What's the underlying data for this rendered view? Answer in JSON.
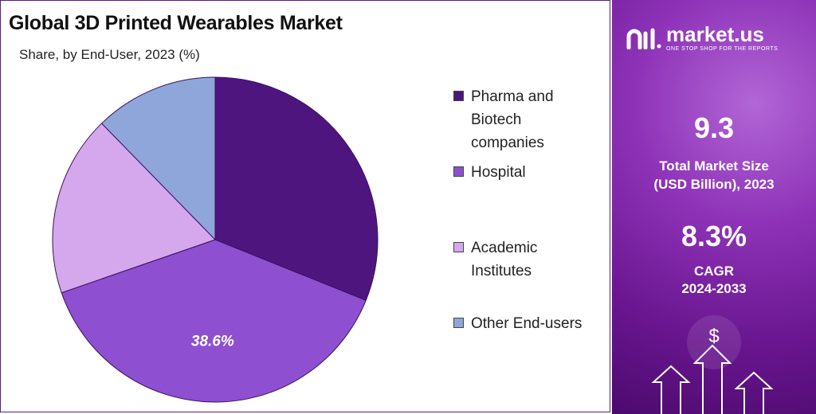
{
  "header": {
    "title": "Global 3D Printed Wearables Market",
    "subtitle": "Share, by End-User, 2023 (%)"
  },
  "chart_data": {
    "type": "pie",
    "title": "Global 3D Printed Wearables Market",
    "subtitle": "Share, by End-User, 2023 (%)",
    "categories": [
      "Pharma and Biotech companies",
      "Hospital",
      "Academic Institutes",
      "Other End-users"
    ],
    "values": [
      31.1,
      38.6,
      18.0,
      12.3
    ],
    "colors": [
      "#4f157f",
      "#8e4fd1",
      "#d5a8ee",
      "#8fa6db"
    ],
    "data_labels": [
      "",
      "38.6%",
      "",
      ""
    ],
    "start_angle_deg": 0,
    "direction": "clockwise"
  },
  "legend": {
    "items": [
      {
        "lines": [
          "Pharma and",
          "Biotech",
          "companies"
        ],
        "color": "#4f157f"
      },
      {
        "lines": [
          "Hospital"
        ],
        "color": "#8e4fd1"
      },
      {
        "lines": [
          "Academic",
          "Institutes"
        ],
        "color": "#d5a8ee"
      },
      {
        "lines": [
          "Other End-users"
        ],
        "color": "#8fa6db"
      }
    ]
  },
  "sidebar": {
    "brand": "market.us",
    "tagline": "ONE STOP SHOP FOR THE REPORTS",
    "market_size_value": "9.3",
    "market_size_label_1": "Total Market Size",
    "market_size_label_2": "(USD Billion), 2023",
    "cagr_value": "8.3%",
    "cagr_label_1": "CAGR",
    "cagr_label_2": "2024-2033",
    "currency_symbol": "$"
  }
}
